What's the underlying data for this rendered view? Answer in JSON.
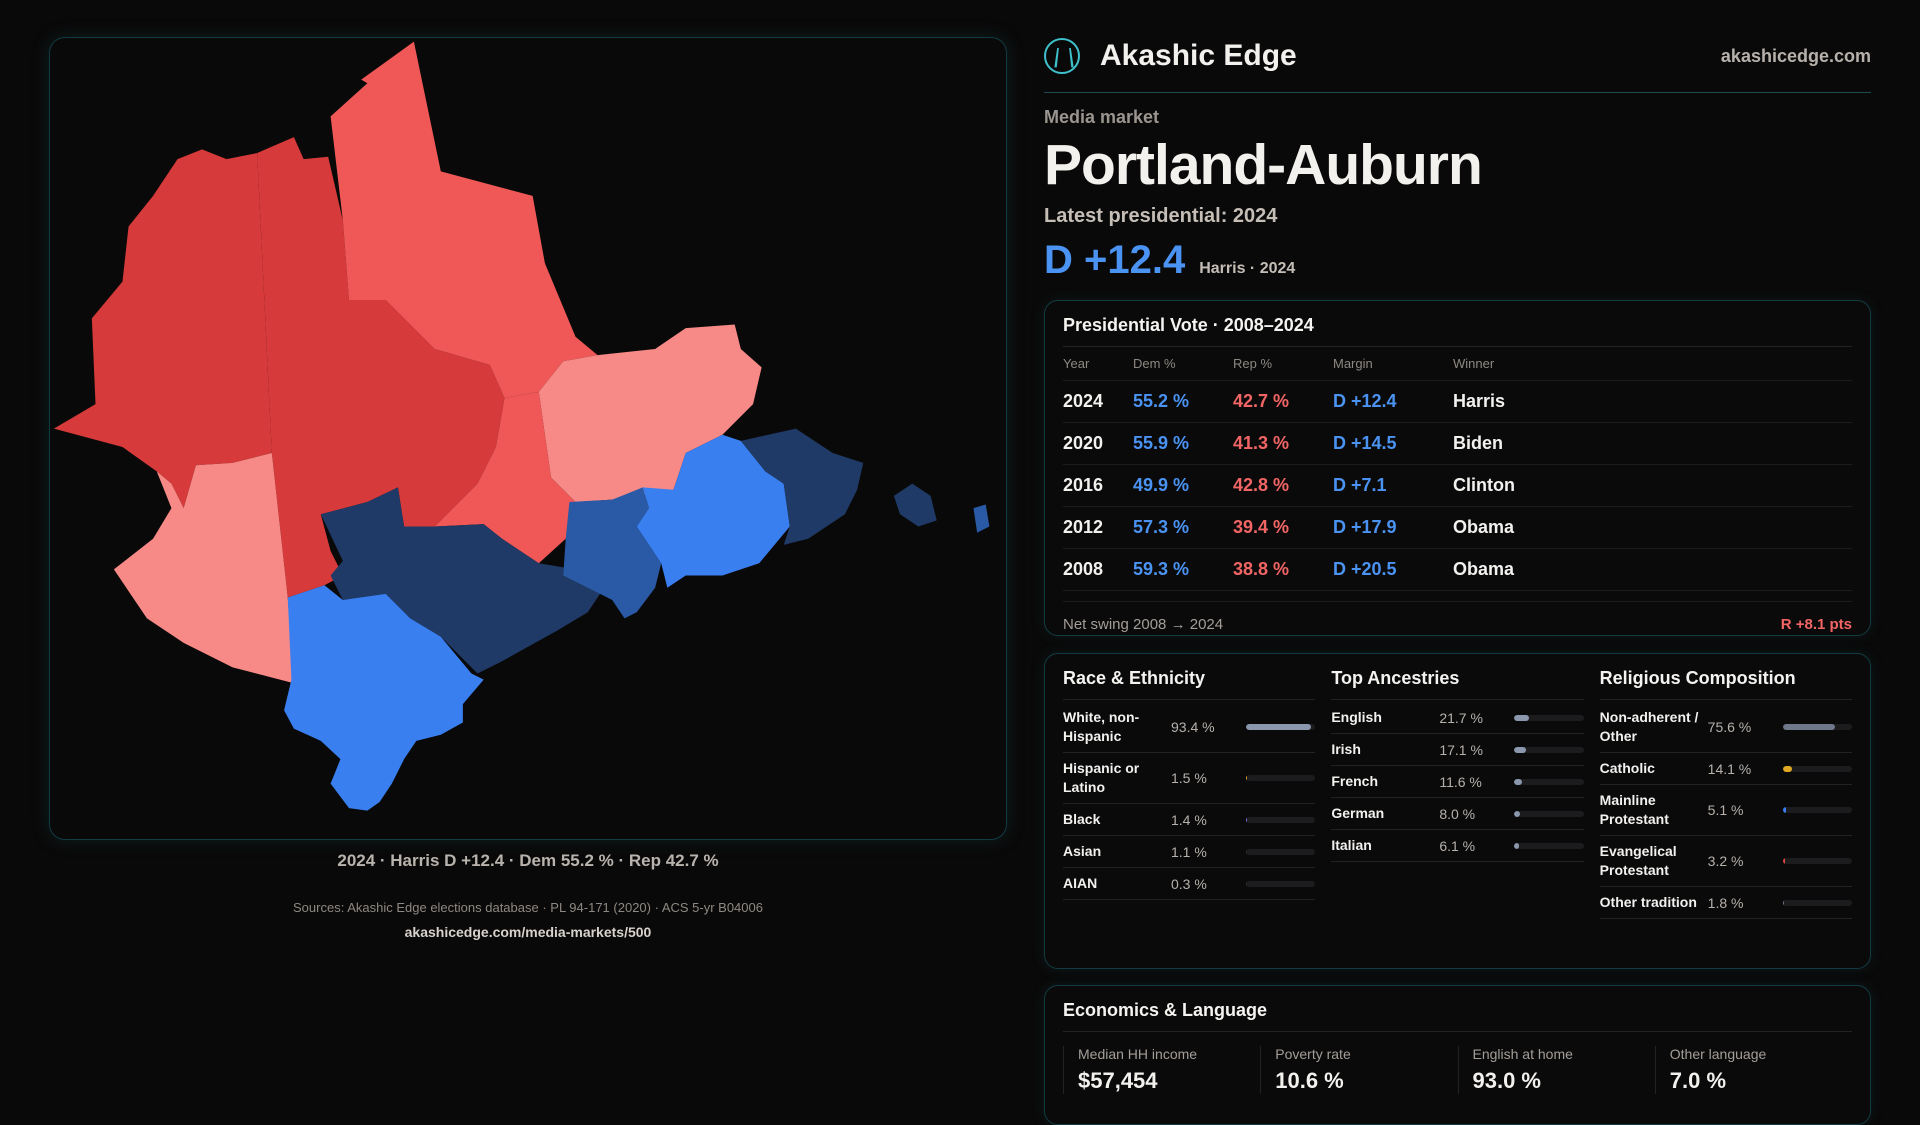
{
  "map": {
    "caption": "2024 · Harris D +12.4 · Dem 55.2 % · Rep 42.7 %",
    "colors": {
      "safe_r": "#d63a3a",
      "likely_r": "#f05858",
      "lean_r": "#f78a87",
      "lean_d": "#2a5aa5",
      "likely_d": "#3a7ff0",
      "safe_d": "#1f3a66"
    }
  },
  "header": {
    "brand": "Akashic Edge",
    "site": "akashicedge.com",
    "logo_icon": "akashic-logo-icon"
  },
  "market": {
    "kicker": "Media market",
    "name": "Portland-Auburn",
    "latest_label": "Latest presidential: 2024",
    "margin": "D +12.4",
    "margin_sub": "Harris · 2024"
  },
  "vote": {
    "title": "Presidential Vote · 2008–2024",
    "headers": [
      "Year",
      "Dem %",
      "Rep %",
      "Margin",
      "Winner"
    ],
    "rows": [
      [
        "2024",
        "55.2 %",
        "42.7 %",
        "D +12.4",
        "Harris"
      ],
      [
        "2020",
        "55.9 %",
        "41.3 %",
        "D +14.5",
        "Biden"
      ],
      [
        "2016",
        "49.9 %",
        "42.8 %",
        "D +7.1",
        "Clinton"
      ],
      [
        "2012",
        "57.3 %",
        "39.4 %",
        "D +17.9",
        "Obama"
      ],
      [
        "2008",
        "59.3 %",
        "38.8 %",
        "D +20.5",
        "Obama"
      ]
    ],
    "swing_label": "Net swing 2008 → 2024",
    "swing_value": "R +8.1 pts"
  },
  "race": {
    "title": "Race & Ethnicity",
    "items": [
      {
        "label": "White, non-Hispanic",
        "value": "93.4 %",
        "pct": 93.4,
        "color": "#8a97ad"
      },
      {
        "label": "Hispanic or Latino",
        "value": "1.5 %",
        "pct": 1.5,
        "color": "#e39a2a"
      },
      {
        "label": "Black",
        "value": "1.4 %",
        "pct": 1.4,
        "color": "#8a6fe0"
      },
      {
        "label": "Asian",
        "value": "1.1 %",
        "pct": 1.1,
        "color": "#2b2b30"
      },
      {
        "label": "AIAN",
        "value": "0.3 %",
        "pct": 0.3,
        "color": "#2b2b30"
      }
    ]
  },
  "ancestry": {
    "title": "Top Ancestries",
    "items": [
      {
        "label": "English",
        "value": "21.7 %",
        "pct": 21.7,
        "color": "#8a97ad"
      },
      {
        "label": "Irish",
        "value": "17.1 %",
        "pct": 17.1,
        "color": "#8a97ad"
      },
      {
        "label": "French",
        "value": "11.6 %",
        "pct": 11.6,
        "color": "#8a97ad"
      },
      {
        "label": "German",
        "value": "8.0 %",
        "pct": 8.0,
        "color": "#8a97ad"
      },
      {
        "label": "Italian",
        "value": "6.1 %",
        "pct": 6.1,
        "color": "#8a97ad"
      }
    ]
  },
  "religion": {
    "title": "Religious Composition",
    "items": [
      {
        "label": "Non-adherent / Other",
        "value": "75.6 %",
        "pct": 75.6,
        "color": "#6f778a"
      },
      {
        "label": "Catholic",
        "value": "14.1 %",
        "pct": 14.1,
        "color": "#e0a823"
      },
      {
        "label": "Mainline Protestant",
        "value": "5.1 %",
        "pct": 5.1,
        "color": "#3a7ff0"
      },
      {
        "label": "Evangelical Protestant",
        "value": "3.2 %",
        "pct": 3.2,
        "color": "#e04545"
      },
      {
        "label": "Other tradition",
        "value": "1.8 %",
        "pct": 1.8,
        "color": "#6f778a"
      }
    ]
  },
  "econ": {
    "title": "Economics & Language",
    "cells": [
      {
        "label": "Median HH income",
        "value": "$57,454"
      },
      {
        "label": "Poverty rate",
        "value": "10.6 %"
      },
      {
        "label": "English at home",
        "value": "93.0 %"
      },
      {
        "label": "Other language",
        "value": "7.0 %"
      }
    ]
  },
  "footer": {
    "sources": "Sources: Akashic Edge elections database · PL 94-171 (2020) · ACS 5-yr B04006",
    "url": "akashicedge.com/media-markets/500"
  }
}
